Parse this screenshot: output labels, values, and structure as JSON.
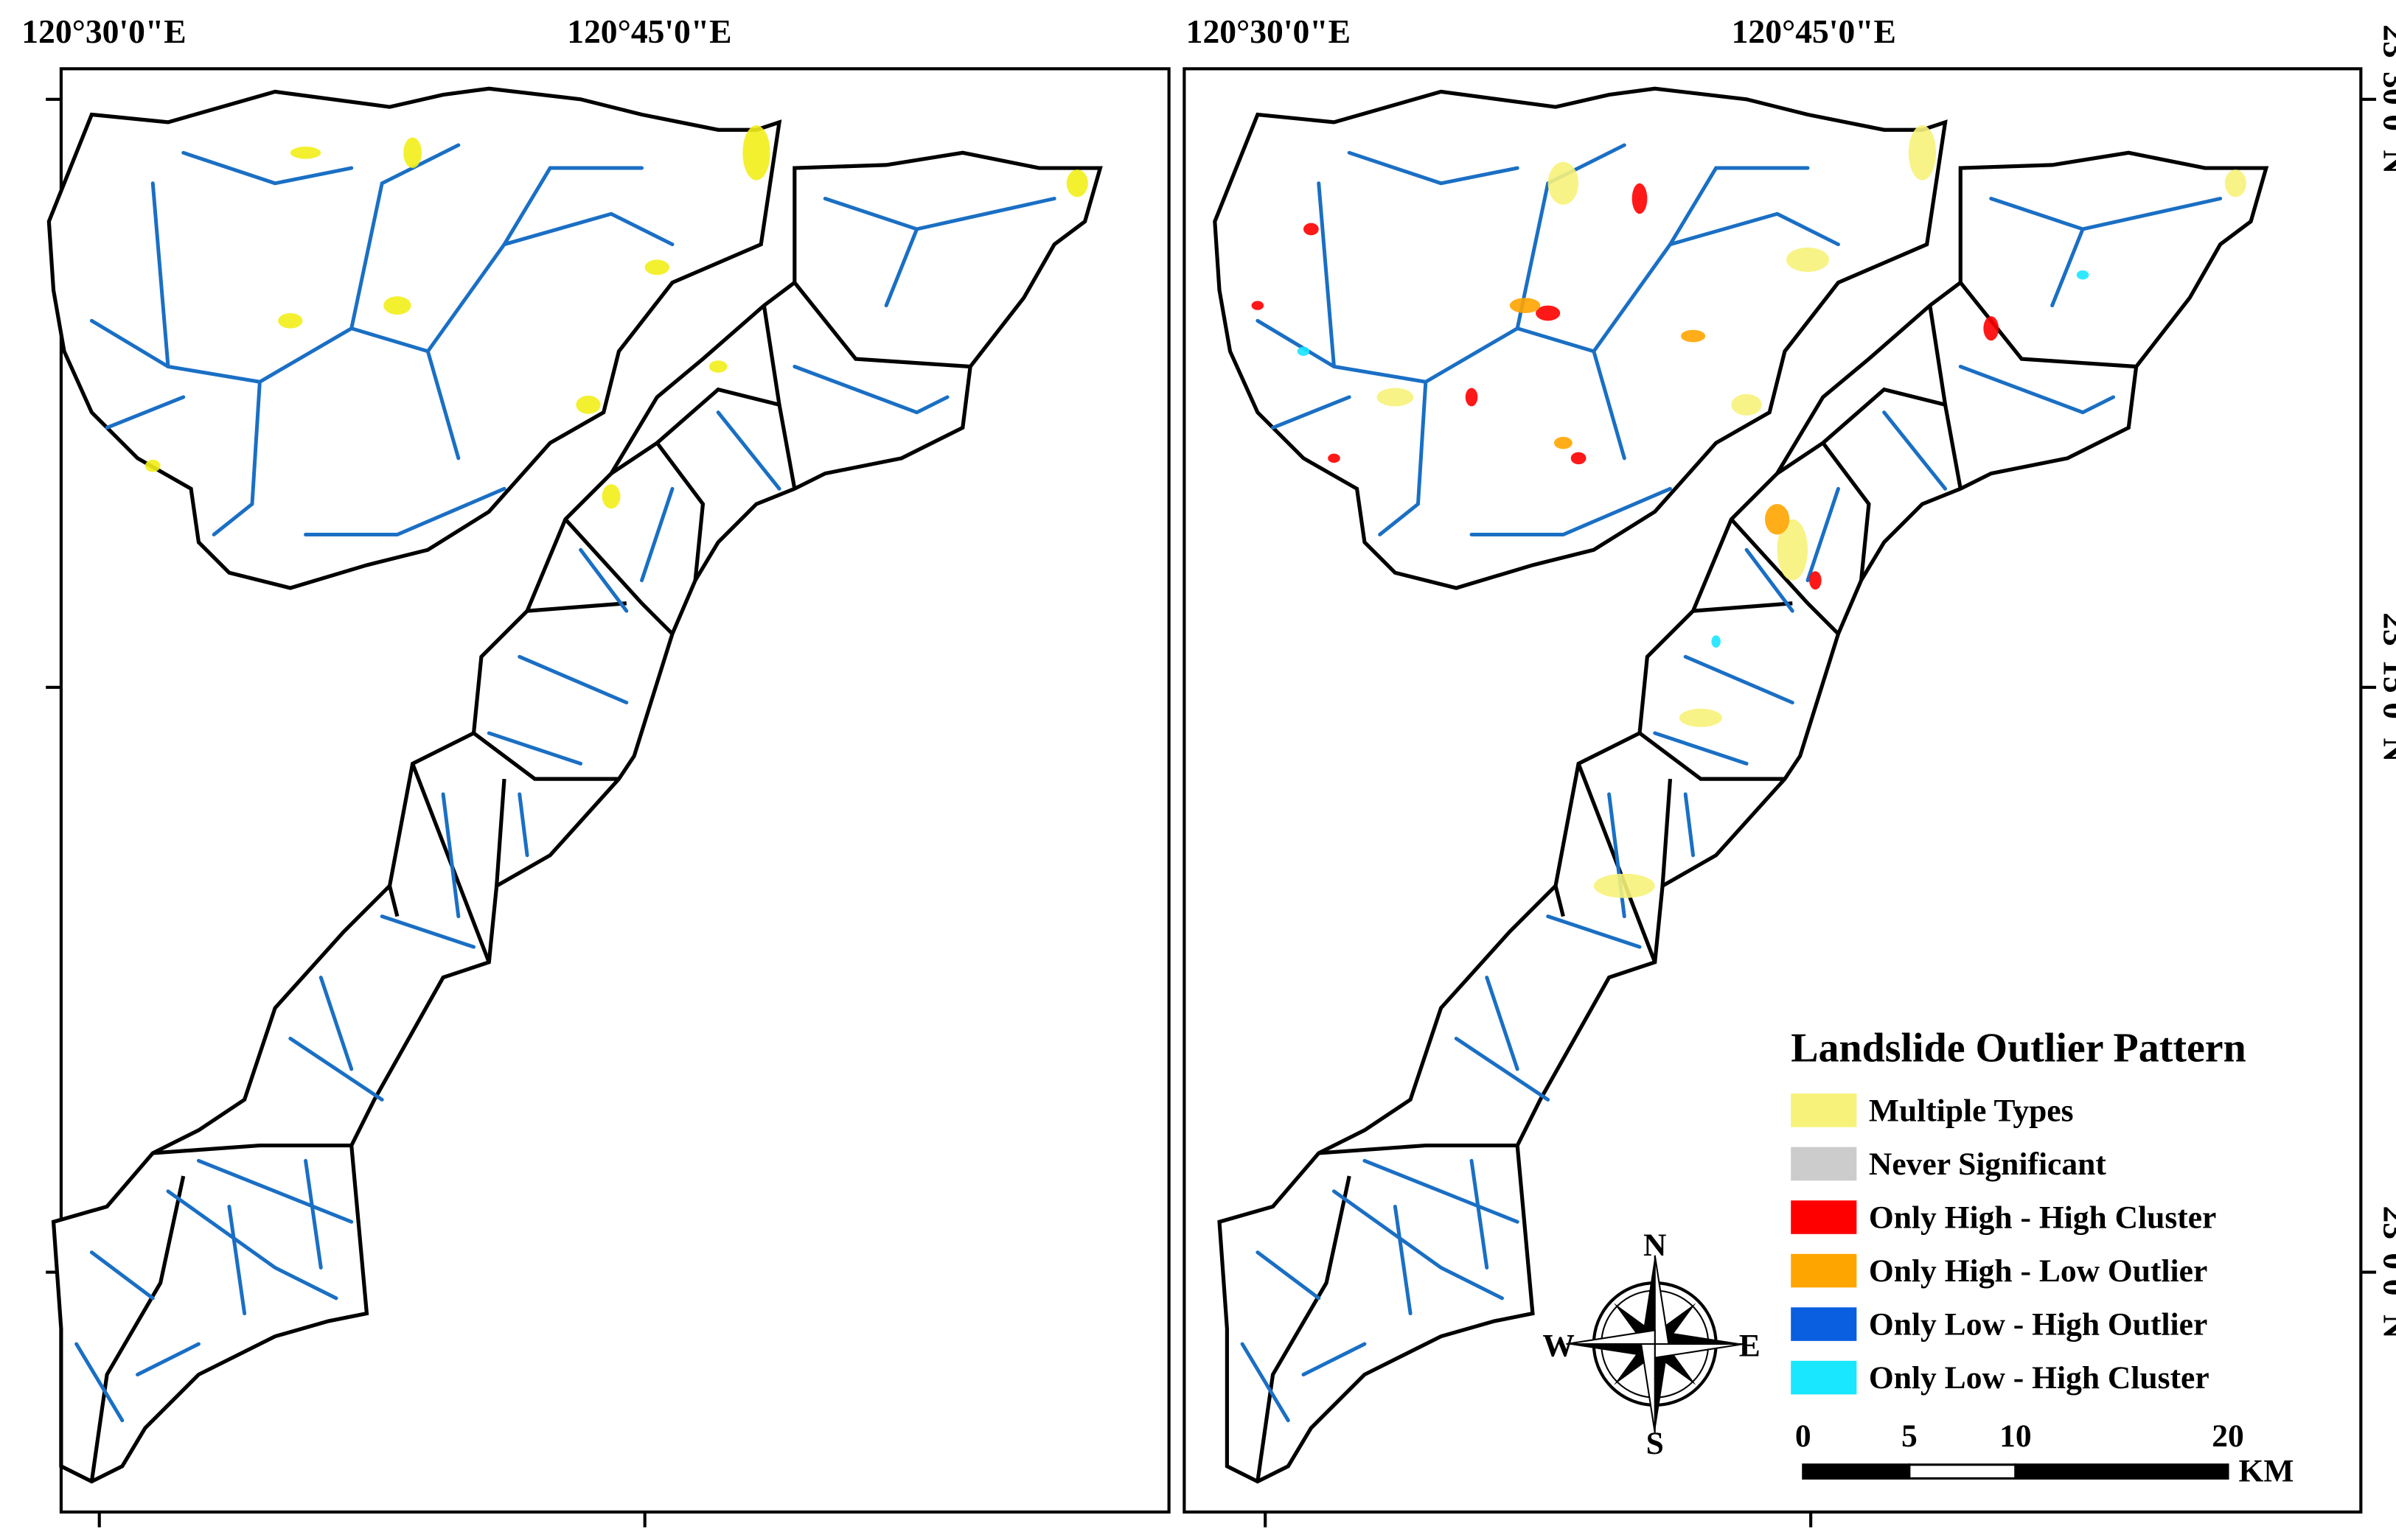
{
  "left_map": {
    "top_labels": [
      "120°30'0\"E",
      "120°45'0\"E"
    ]
  },
  "right_map": {
    "top_labels": [
      "120°30'0\"E",
      "120°45'0\"E"
    ],
    "right_labels": [
      "23°30'0\"N",
      "23°15'0\"N",
      "23°0'0\"N"
    ]
  },
  "legend": {
    "title": "Landslide Outlier Pattern",
    "items": [
      {
        "label": "Multiple Types",
        "color": "#f7f27a"
      },
      {
        "label": "Never Significant",
        "color": "#cccccc"
      },
      {
        "label": "Only High - High Cluster",
        "color": "#ff0000"
      },
      {
        "label": "Only High - Low Outlier",
        "color": "#ffa500"
      },
      {
        "label": "Only Low - High Outlier",
        "color": "#0a5ee0"
      },
      {
        "label": "Only Low - High Cluster",
        "color": "#19e6ff"
      }
    ]
  },
  "compass": {
    "n": "N",
    "e": "E",
    "s": "S",
    "w": "W"
  },
  "scale_bar": {
    "labels": [
      0,
      5,
      10,
      20
    ],
    "unit": "KM"
  }
}
